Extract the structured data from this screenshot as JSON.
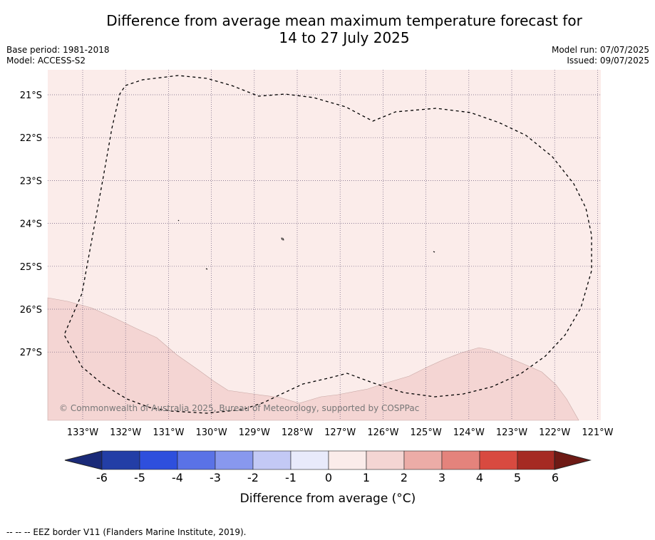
{
  "title": {
    "line1": "Difference from average mean maximum temperature forecast for",
    "line2": "14 to 27 July 2025"
  },
  "meta_left": {
    "base_period": "Base period: 1981-2018",
    "model": "Model: ACCESS-S2"
  },
  "meta_right": {
    "model_run": "Model run: 07/07/2025",
    "issued": "Issued: 09/07/2025"
  },
  "map": {
    "lon_ticks": [
      "133°W",
      "132°W",
      "131°W",
      "130°W",
      "129°W",
      "128°W",
      "127°W",
      "126°W",
      "125°W",
      "124°W",
      "123°W",
      "122°W",
      "121°W"
    ],
    "lat_ticks": [
      "21°S",
      "22°S",
      "23°S",
      "24°S",
      "25°S",
      "26°S",
      "27°S"
    ],
    "copyright": "© Commonwealth of Australia 2025, Bureau of Meteorology, supported by COSPPac",
    "fill_colors": {
      "band_0_1": "#fbecea",
      "band_1_2": "#f4d5d3"
    },
    "eez_line_style": "dashed-black"
  },
  "colorbar": {
    "ticks": [
      "-6",
      "-5",
      "-4",
      "-3",
      "-2",
      "-1",
      "0",
      "1",
      "2",
      "3",
      "4",
      "5",
      "6"
    ],
    "colors": [
      "#233ea6",
      "#2e4fdd",
      "#5a72e6",
      "#8898ee",
      "#c3c9f5",
      "#e8eafb",
      "#fbecea",
      "#f4d5d3",
      "#ecaca7",
      "#e4837c",
      "#d84a40",
      "#a52a23"
    ],
    "under_color": "#1a2a78",
    "over_color": "#6e1a15",
    "label": "Difference from average (°C)"
  },
  "footer": "--  --  -- EEZ border V11 (Flanders Marine Institute, 2019)."
}
